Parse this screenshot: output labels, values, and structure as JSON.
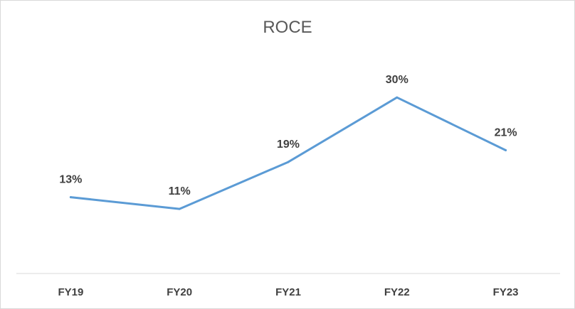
{
  "chart_data": {
    "type": "line",
    "title": "ROCE",
    "categories": [
      "FY19",
      "FY20",
      "FY21",
      "FY22",
      "FY23"
    ],
    "series": [
      {
        "values": [
          13,
          11,
          19,
          30,
          21
        ],
        "labels": [
          "13%",
          "11%",
          "19%",
          "30%",
          "21%"
        ],
        "color": "#5B9BD5"
      }
    ],
    "xlabel": "",
    "ylabel": "",
    "ylim": [
      0,
      35
    ],
    "grid": false,
    "legend": "none",
    "axis_color": "#d9d9d9"
  }
}
